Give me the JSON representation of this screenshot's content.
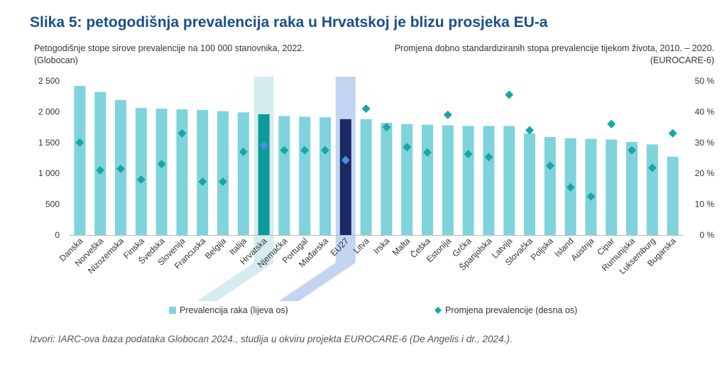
{
  "title": "Slika 5: petogodišnja prevalencija raka u Hrvatskoj je blizu prosjeka EU-a",
  "subtitle_left": "Petogodišnje stope sirove prevalencije na 100 000 stanovnika, 2022. (Globocan)",
  "subtitle_right": "Promjena dobno standardiziranih stopa prevalencije tijekom života, 2010. – 2020. (EUROCARE-6)",
  "source": "Izvori: IARC-ova baza podataka Globocan 2024., studija u okviru projekta EUROCARE-6 (De Angelis i dr., 2024.).",
  "colors": {
    "bar": "#7fd3dc",
    "bar_hrvatska": "#0d9a9a",
    "bar_eu27": "#1c2a64",
    "marker": "#17a7a5",
    "marker_highlight": "#4a90e2",
    "highlight_hrvatska": "#cfe9ee",
    "highlight_eu27": "#b8cdf0"
  },
  "chart_data": {
    "type": "bar",
    "categories": [
      "Danska",
      "Norveška",
      "Nizozemska",
      "Finska",
      "Švedska",
      "Slovenija",
      "Francuska",
      "Belgija",
      "Italija",
      "Hrvatska",
      "Njemačka",
      "Portugal",
      "Mađarska",
      "EU27",
      "Litva",
      "Irska",
      "Malta",
      "Češka",
      "Estonija",
      "Grčka",
      "Španjolska",
      "Latvija",
      "Slovačka",
      "Poljska",
      "Island",
      "Austrija",
      "Cipar",
      "Rumunjska",
      "Luksemburg",
      "Bugarska"
    ],
    "series": [
      {
        "name": "Prevalencija raka (lijeva os)",
        "type": "bar",
        "axis": "left",
        "values": [
          2420,
          2320,
          2190,
          2060,
          2050,
          2040,
          2030,
          2010,
          1990,
          1960,
          1930,
          1920,
          1910,
          1880,
          1880,
          1820,
          1800,
          1790,
          1780,
          1770,
          1770,
          1770,
          1650,
          1590,
          1570,
          1560,
          1550,
          1510,
          1470,
          1270
        ]
      },
      {
        "name": "Promjena prevalencije (desna os)",
        "type": "scatter",
        "axis": "right",
        "values": [
          30,
          21,
          21.5,
          18,
          23,
          33,
          17.3,
          17.3,
          27,
          29,
          27.5,
          27.5,
          27.5,
          24.3,
          41,
          35,
          28.5,
          26.8,
          39,
          26.3,
          25.3,
          45.5,
          34,
          22.5,
          15.5,
          12.5,
          36,
          27.5,
          21.8,
          33
        ]
      }
    ],
    "highlight": [
      "Hrvatska",
      "EU27"
    ],
    "left_axis": {
      "min": 0,
      "max": 2500,
      "ticks": [
        "0",
        "500",
        "1 000",
        "1 500",
        "2 000",
        "2 500"
      ]
    },
    "right_axis": {
      "min": 0,
      "max": 50,
      "ticks": [
        "0 %",
        "10 %",
        "20 %",
        "30 %",
        "40 %",
        "50 %"
      ]
    },
    "legend_position": "bottom",
    "grid": false
  }
}
